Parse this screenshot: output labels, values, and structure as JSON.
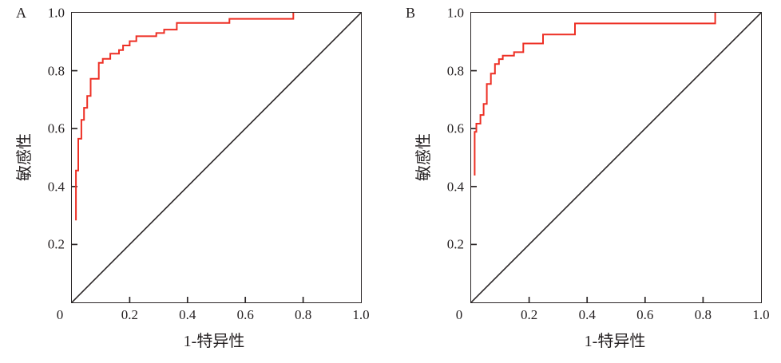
{
  "colors": {
    "axis": "#2b2627",
    "roc": "#ed2f24",
    "reference": "#2b2627"
  },
  "panels": [
    {
      "label": "A",
      "x_axis": {
        "title": "1-特异性",
        "tick_labels": [
          "0",
          "0.2",
          "0.4",
          "0.6",
          "0.8",
          "1.0"
        ]
      },
      "y_axis": {
        "title": "敏感性",
        "tick_labels": [
          "0.2",
          "0.4",
          "0.6",
          "0.8",
          "1.0"
        ]
      }
    },
    {
      "label": "B",
      "x_axis": {
        "title": "1-特异性",
        "tick_labels": [
          "0",
          "0.2",
          "0.4",
          "0.6",
          "0.8",
          "1.0"
        ]
      },
      "y_axis": {
        "title": "敏感性",
        "tick_labels": [
          "0.2",
          "0.4",
          "0.6",
          "0.8",
          "1.0"
        ]
      }
    }
  ],
  "chart_data": [
    {
      "type": "line",
      "panel": "A",
      "title": "",
      "xlabel": "1-特异性",
      "ylabel": "敏感性",
      "xlim": [
        0,
        1
      ],
      "ylim": [
        0,
        1
      ],
      "x_ticks": [
        0,
        0.2,
        0.4,
        0.6,
        0.8,
        1.0
      ],
      "y_ticks": [
        0.2,
        0.4,
        0.6,
        0.8,
        1.0
      ],
      "grid": false,
      "legend": "none",
      "series": [
        {
          "name": "ROC curve",
          "color": "#ed2f24",
          "width": 2,
          "style": "step",
          "points": [
            [
              0.014,
              0.283
            ],
            [
              0.014,
              0.455
            ],
            [
              0.022,
              0.455
            ],
            [
              0.022,
              0.565
            ],
            [
              0.033,
              0.565
            ],
            [
              0.033,
              0.63
            ],
            [
              0.042,
              0.63
            ],
            [
              0.042,
              0.672
            ],
            [
              0.053,
              0.672
            ],
            [
              0.053,
              0.713
            ],
            [
              0.065,
              0.713
            ],
            [
              0.065,
              0.772
            ],
            [
              0.093,
              0.772
            ],
            [
              0.093,
              0.827
            ],
            [
              0.107,
              0.827
            ],
            [
              0.107,
              0.841
            ],
            [
              0.133,
              0.841
            ],
            [
              0.133,
              0.859
            ],
            [
              0.163,
              0.859
            ],
            [
              0.163,
              0.871
            ],
            [
              0.177,
              0.871
            ],
            [
              0.177,
              0.887
            ],
            [
              0.2,
              0.887
            ],
            [
              0.2,
              0.902
            ],
            [
              0.223,
              0.902
            ],
            [
              0.223,
              0.919
            ],
            [
              0.292,
              0.919
            ],
            [
              0.292,
              0.93
            ],
            [
              0.319,
              0.93
            ],
            [
              0.319,
              0.942
            ],
            [
              0.363,
              0.942
            ],
            [
              0.363,
              0.965
            ],
            [
              0.545,
              0.965
            ],
            [
              0.545,
              0.979
            ],
            [
              0.766,
              0.979
            ],
            [
              0.766,
              1.0
            ]
          ]
        },
        {
          "name": "Reference diagonal",
          "color": "#2b2627",
          "width": 1.6,
          "style": "straight",
          "points": [
            [
              0,
              0
            ],
            [
              1,
              1
            ]
          ]
        }
      ]
    },
    {
      "type": "line",
      "panel": "B",
      "title": "",
      "xlabel": "1-特异性",
      "ylabel": "敏感性",
      "xlim": [
        0,
        1
      ],
      "ylim": [
        0,
        1
      ],
      "x_ticks": [
        0,
        0.2,
        0.4,
        0.6,
        0.8,
        1.0
      ],
      "y_ticks": [
        0.2,
        0.4,
        0.6,
        0.8,
        1.0
      ],
      "grid": false,
      "legend": "none",
      "series": [
        {
          "name": "ROC curve",
          "color": "#ed2f24",
          "width": 2,
          "style": "step",
          "points": [
            [
              0.012,
              0.438
            ],
            [
              0.012,
              0.589
            ],
            [
              0.018,
              0.589
            ],
            [
              0.018,
              0.617
            ],
            [
              0.032,
              0.617
            ],
            [
              0.032,
              0.647
            ],
            [
              0.043,
              0.647
            ],
            [
              0.043,
              0.685
            ],
            [
              0.054,
              0.685
            ],
            [
              0.054,
              0.754
            ],
            [
              0.068,
              0.754
            ],
            [
              0.068,
              0.79
            ],
            [
              0.082,
              0.79
            ],
            [
              0.082,
              0.823
            ],
            [
              0.096,
              0.823
            ],
            [
              0.096,
              0.84
            ],
            [
              0.109,
              0.84
            ],
            [
              0.109,
              0.852
            ],
            [
              0.148,
              0.852
            ],
            [
              0.148,
              0.864
            ],
            [
              0.18,
              0.864
            ],
            [
              0.18,
              0.894
            ],
            [
              0.248,
              0.894
            ],
            [
              0.248,
              0.925
            ],
            [
              0.358,
              0.925
            ],
            [
              0.358,
              0.963
            ],
            [
              0.842,
              0.963
            ],
            [
              0.842,
              1.0
            ]
          ]
        },
        {
          "name": "Reference diagonal",
          "color": "#2b2627",
          "width": 1.6,
          "style": "straight",
          "points": [
            [
              0,
              0
            ],
            [
              1,
              1
            ]
          ]
        }
      ]
    }
  ]
}
